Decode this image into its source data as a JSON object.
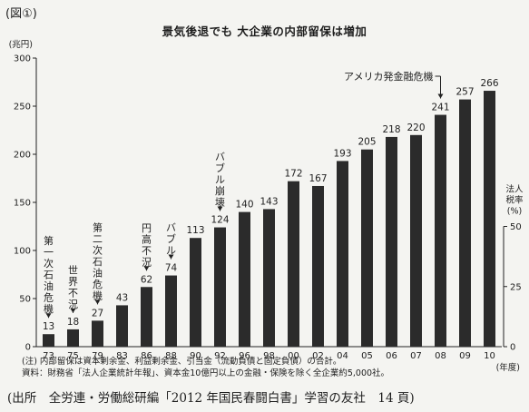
{
  "figure_label": "(図①)",
  "chart_data": {
    "type": "bar",
    "title": "景気後退でも 大企業の内部留保は増加",
    "y_unit": "(兆円)",
    "ylim": [
      0,
      300
    ],
    "yticks": [
      0,
      50,
      100,
      150,
      200,
      250,
      300
    ],
    "x_unit": "(年度)",
    "categories": [
      "73",
      "75",
      "79",
      "83",
      "86",
      "88",
      "90",
      "92",
      "96",
      "98",
      "00",
      "02",
      "04",
      "05",
      "06",
      "07",
      "08",
      "09",
      "10"
    ],
    "values": [
      13,
      18,
      27,
      43,
      62,
      74,
      113,
      124,
      140,
      143,
      172,
      167,
      193,
      205,
      218,
      220,
      241,
      257,
      266
    ],
    "bar_color": "#2b2b2b",
    "secondary_axis": {
      "label_lines": [
        "法人",
        "税率",
        "(%)"
      ],
      "ylim": [
        0,
        50
      ],
      "ticks": [
        0,
        25,
        50
      ]
    },
    "annotations": [
      {
        "category": "73",
        "text": "第一次石油危機"
      },
      {
        "category": "75",
        "text": "世界不況"
      },
      {
        "category": "79",
        "text": "第二次石油危機"
      },
      {
        "category": "86",
        "text": "円高不況"
      },
      {
        "category": "88",
        "text": "バブル"
      },
      {
        "category": "92",
        "text": "バブル崩壊"
      },
      {
        "category": "08",
        "text": "アメリカ発金融危機"
      }
    ]
  },
  "notes": [
    "(注) 内部留保は資本剰余金、利益剰余金、引当金（流動負債と固定負債）の合計。",
    "資料：財務省「法人企業統計年報」、資本金10億円以上の金融・保険を除く全企業約5,000社。"
  ],
  "source": "(出所　全労連・労働総研編「2012 年国民春闘白書」学習の友社　14 頁)"
}
